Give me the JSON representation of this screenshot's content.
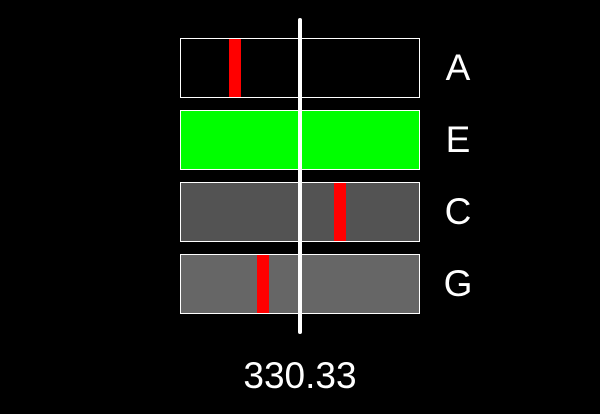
{
  "strings": [
    {
      "note": "A",
      "in_tune": false,
      "fill": "#000000",
      "needle_position": 0.225
    },
    {
      "note": "E",
      "in_tune": true,
      "fill": "#00ff00",
      "needle_position": null
    },
    {
      "note": "C",
      "in_tune": false,
      "fill": "#535353",
      "needle_position": 0.67
    },
    {
      "note": "G",
      "in_tune": false,
      "fill": "#666666",
      "needle_position": 0.346
    }
  ],
  "frequency": "330.33",
  "colors": {
    "needle": "#ff0000",
    "in_tune": "#00ff00",
    "center_line": "#ffffff"
  }
}
